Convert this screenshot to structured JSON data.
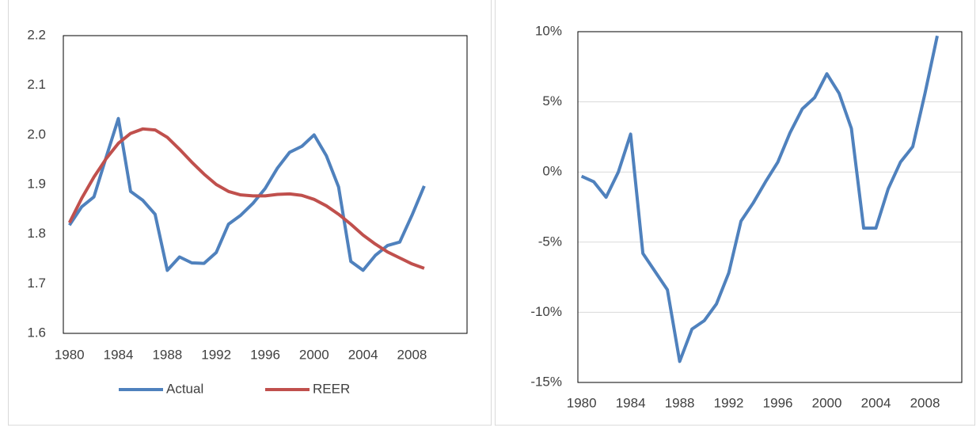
{
  "chart_data": [
    {
      "type": "line",
      "x": [
        1980,
        1981,
        1982,
        1983,
        1984,
        1985,
        1986,
        1987,
        1988,
        1989,
        1990,
        1991,
        1992,
        1993,
        1994,
        1995,
        1996,
        1997,
        1998,
        1999,
        2000,
        2001,
        2002,
        2003,
        2004,
        2005,
        2006,
        2007,
        2008,
        2009
      ],
      "series": [
        {
          "name": "Actual",
          "color": "#4f81bd",
          "values": [
            1.818,
            1.855,
            1.875,
            1.955,
            2.033,
            1.886,
            1.868,
            1.84,
            1.727,
            1.754,
            1.742,
            1.741,
            1.763,
            1.82,
            1.838,
            1.862,
            1.892,
            1.933,
            1.965,
            1.977,
            2.0,
            1.958,
            1.895,
            1.745,
            1.727,
            1.757,
            1.777,
            1.784,
            1.838,
            1.897
          ]
        },
        {
          "name": "REER",
          "color": "#c0504d",
          "values": [
            1.823,
            1.872,
            1.915,
            1.952,
            1.983,
            2.003,
            2.012,
            2.01,
            1.995,
            1.971,
            1.945,
            1.921,
            1.9,
            1.886,
            1.879,
            1.877,
            1.877,
            1.88,
            1.881,
            1.878,
            1.87,
            1.857,
            1.84,
            1.82,
            1.798,
            1.78,
            1.764,
            1.752,
            1.74,
            1.731
          ]
        }
      ],
      "xlim": [
        1979.5,
        2012.5
      ],
      "xticks": [
        1980,
        1984,
        1988,
        1992,
        1996,
        2000,
        2004,
        2008
      ],
      "ylim": [
        1.6,
        2.2
      ],
      "yticks": [
        1.6,
        1.7,
        1.8,
        1.9,
        {
          "value": 2.0,
          "label": "2.0"
        },
        2.1,
        2.2
      ],
      "grid": false,
      "legend": "bottom"
    },
    {
      "type": "line",
      "x": [
        1980,
        1981,
        1982,
        1983,
        1984,
        1985,
        1986,
        1987,
        1988,
        1989,
        1990,
        1991,
        1992,
        1993,
        1994,
        1995,
        1996,
        1997,
        1998,
        1999,
        2000,
        2001,
        2002,
        2003,
        2004,
        2005,
        2006,
        2007,
        2008,
        2009
      ],
      "series": [
        {
          "color": "#4f81bd",
          "values": [
            -0.3,
            -0.7,
            -1.8,
            0,
            2.7,
            -5.8,
            -7.1,
            -8.4,
            -13.5,
            -11.2,
            -10.6,
            -9.4,
            -7.2,
            -3.5,
            -2.2,
            -0.7,
            0.7,
            2.8,
            4.5,
            5.3,
            7.0,
            5.6,
            3.1,
            -4.0,
            -4.0,
            -1.2,
            0.7,
            1.8,
            5.6,
            9.7
          ]
        }
      ],
      "xlim": [
        1979.7,
        2011.0
      ],
      "xticks": [
        1980,
        1984,
        1988,
        1992,
        1996,
        2000,
        2004,
        2008
      ],
      "ylim": [
        -15,
        10
      ],
      "yticks": [
        {
          "value": -15,
          "label": "-15%"
        },
        {
          "value": -10,
          "label": "-10%"
        },
        {
          "value": -5,
          "label": "-5%"
        },
        {
          "value": 0,
          "label": "0%"
        },
        {
          "value": 5,
          "label": "5%"
        },
        {
          "value": 10,
          "label": "10%"
        }
      ],
      "grid": true
    }
  ]
}
